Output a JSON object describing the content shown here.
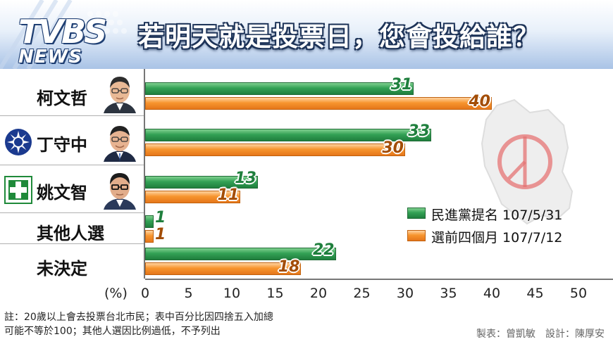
{
  "header": {
    "logo_main": "TVBS",
    "logo_sub": "NEWS",
    "title": "若明天就是投票日，您會投給誰？"
  },
  "chart_data": {
    "type": "bar",
    "orientation": "horizontal",
    "unit_label": "(%)",
    "categories": [
      "柯文哲",
      "丁守中",
      "姚文智",
      "其他人選",
      "未決定"
    ],
    "series": [
      {
        "name": "民進黨提名 107/5/31",
        "color": "#2e9a4f",
        "values": [
          31,
          33,
          13,
          1,
          22
        ]
      },
      {
        "name": "選前四個月 107/7/12",
        "color": "#f28a24",
        "values": [
          40,
          30,
          11,
          1,
          18
        ]
      }
    ],
    "xlim": [
      0,
      50
    ],
    "xticks": [
      "0",
      "5",
      "10",
      "15",
      "20",
      "25",
      "30",
      "35",
      "40",
      "45",
      "50"
    ],
    "value_labels": {
      "green": [
        "31",
        "33",
        "13",
        "1",
        "22"
      ],
      "orange": [
        "40",
        "30",
        "11",
        "1",
        "18"
      ]
    },
    "legend_position": "right"
  },
  "notes": {
    "line1": "註：20歲以上會去投票台北市民；表中百分比因四捨五入加總",
    "line2": "可能不等於100；其他人選因比例過低，不予列出"
  },
  "credits": "製表：曾凱敏　設計：陳厚安",
  "colors": {
    "title_shadow": "#1d3358",
    "green": "#2e9a4f",
    "orange": "#f28a24",
    "kmt_blue": "#1b3a8f",
    "dpp_green": "#1f8a3a"
  }
}
